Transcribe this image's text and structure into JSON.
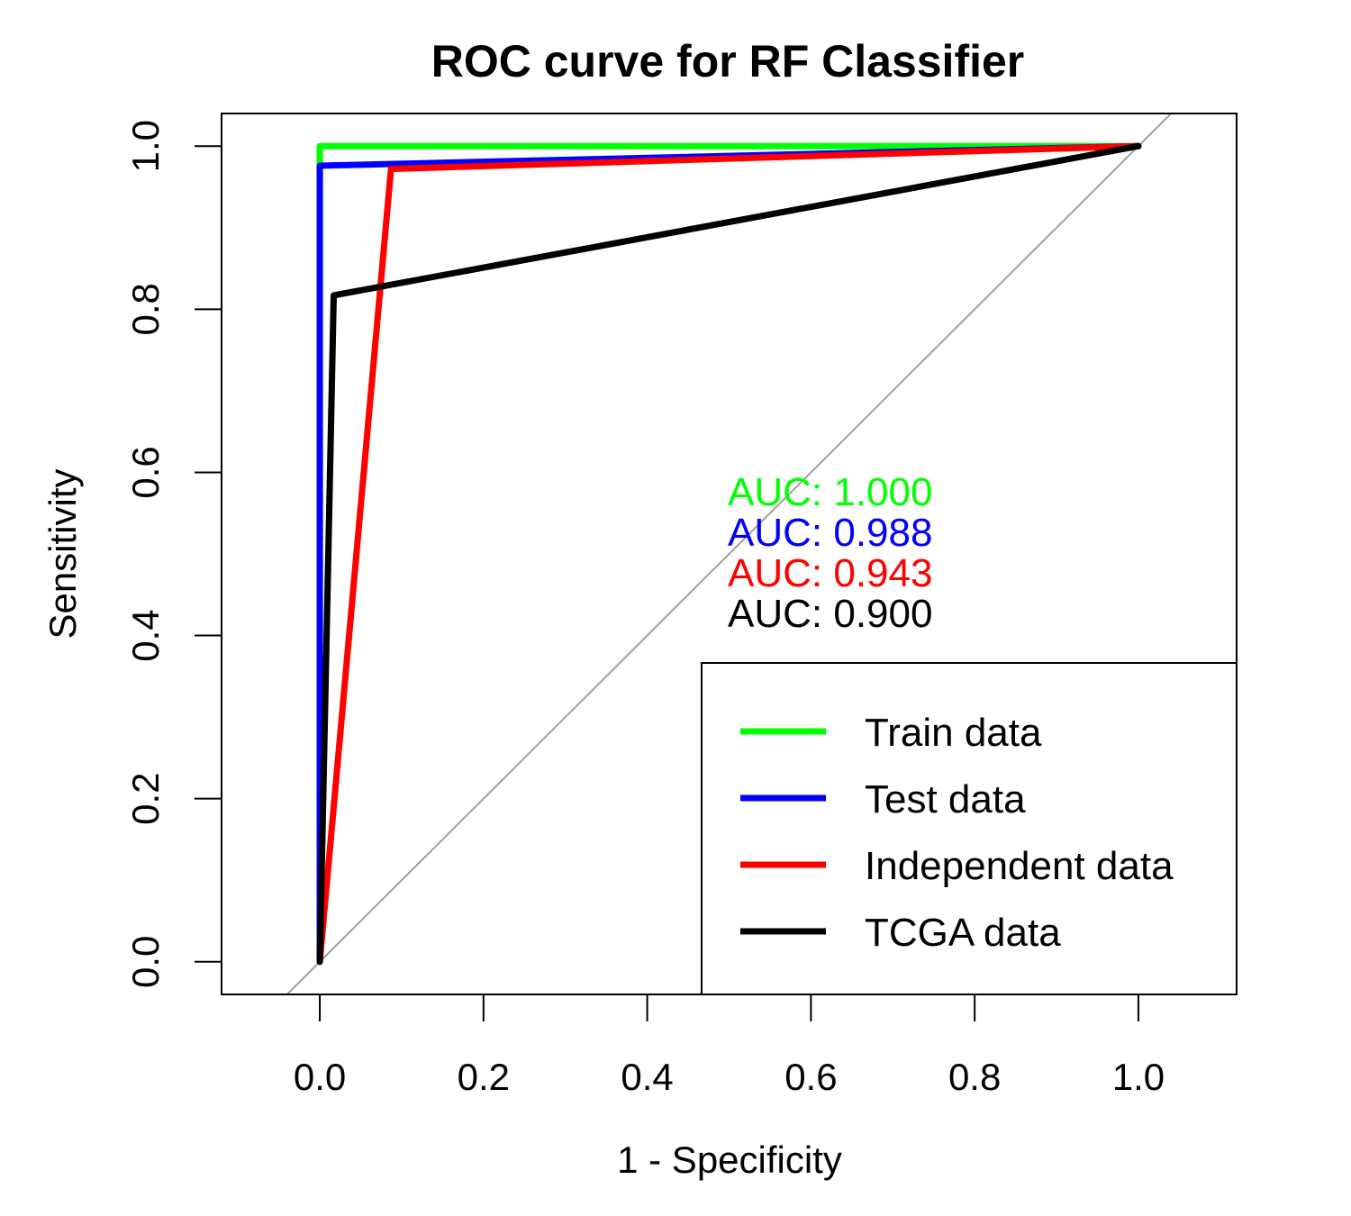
{
  "chart_data": {
    "type": "line",
    "title": "ROC curve for RF Classifier",
    "xlabel": "1 - Specificity",
    "ylabel": "Sensitivity",
    "xlim": [
      -0.12,
      1.12
    ],
    "ylim": [
      -0.04,
      1.04
    ],
    "xticks": [
      0.0,
      0.2,
      0.4,
      0.6,
      0.8,
      1.0
    ],
    "xtick_labels": [
      "0.0",
      "0.2",
      "0.4",
      "0.6",
      "0.8",
      "1.0"
    ],
    "yticks": [
      0.0,
      0.2,
      0.4,
      0.6,
      0.8,
      1.0
    ],
    "ytick_labels": [
      "0.0",
      "0.2",
      "0.4",
      "0.6",
      "0.8",
      "1.0"
    ],
    "grid": false,
    "reference_line": {
      "points": [
        [
          -0.05,
          -0.05
        ],
        [
          1.05,
          1.05
        ]
      ],
      "color": "#a0a0a0"
    },
    "legend": {
      "placement": "bottom-right"
    },
    "series": [
      {
        "name": "Train data",
        "color": "#00ff00",
        "auc_label": "AUC: 1.000",
        "points": [
          [
            0,
            0
          ],
          [
            0,
            1.0
          ],
          [
            1,
            1
          ]
        ]
      },
      {
        "name": "Test data",
        "color": "#0000ff",
        "auc_label": "AUC: 0.988",
        "points": [
          [
            0,
            0
          ],
          [
            0,
            0.976
          ],
          [
            1,
            1
          ]
        ]
      },
      {
        "name": "Independent data",
        "color": "#ff0000",
        "auc_label": "AUC: 0.943",
        "points": [
          [
            0,
            0
          ],
          [
            0.087,
            0.972
          ],
          [
            1,
            1
          ]
        ]
      },
      {
        "name": "TCGA data",
        "color": "#000000",
        "auc_label": "AUC: 0.900",
        "points": [
          [
            0,
            0
          ],
          [
            0.017,
            0.817
          ],
          [
            1,
            1
          ]
        ]
      }
    ]
  }
}
